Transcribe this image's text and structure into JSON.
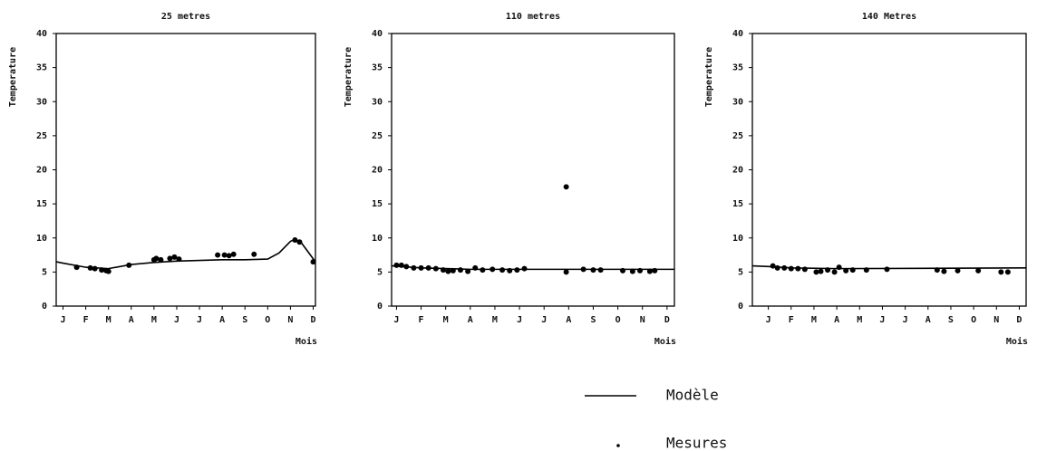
{
  "chart_data": [
    {
      "type": "line-scatter",
      "title": "25 metres",
      "y_label": "Temperature",
      "x_label": "Mois",
      "xlim": [
        -0.3,
        11.1
      ],
      "ylim": [
        0,
        40
      ],
      "yticks": [
        0,
        5,
        10,
        15,
        20,
        25,
        30,
        35,
        40
      ],
      "xticks": [
        {
          "value": 0,
          "label": "J"
        },
        {
          "value": 1,
          "label": "F"
        },
        {
          "value": 2,
          "label": "M"
        },
        {
          "value": 3,
          "label": "A"
        },
        {
          "value": 4,
          "label": "M"
        },
        {
          "value": 5,
          "label": "J"
        },
        {
          "value": 6,
          "label": "J"
        },
        {
          "value": 7,
          "label": "A"
        },
        {
          "value": 8,
          "label": "S"
        },
        {
          "value": 9,
          "label": "O"
        },
        {
          "value": 10,
          "label": "N"
        },
        {
          "value": 11,
          "label": "D"
        }
      ],
      "series": [
        {
          "name": "Modèle",
          "kind": "line",
          "color": "#000000",
          "x": [
            -0.3,
            0,
            1,
            2,
            3,
            4,
            5,
            6,
            7,
            8,
            9,
            9.5,
            10,
            10.2,
            10.5,
            11.1
          ],
          "values": [
            6.5,
            6.3,
            5.7,
            5.5,
            6.1,
            6.4,
            6.6,
            6.7,
            6.8,
            6.8,
            6.9,
            7.8,
            9.5,
            9.8,
            9.2,
            6.5
          ]
        },
        {
          "name": "Mesures",
          "kind": "scatter",
          "color": "#000000",
          "x": [
            0.6,
            1.2,
            1.4,
            1.7,
            1.9,
            2.0,
            2.9,
            4.0,
            4.1,
            4.3,
            4.7,
            4.9,
            5.1,
            6.8,
            7.1,
            7.3,
            7.5,
            8.4,
            10.2,
            10.4,
            11.0
          ],
          "values": [
            5.7,
            5.6,
            5.5,
            5.3,
            5.2,
            5.1,
            6.0,
            6.8,
            7.0,
            6.8,
            7.0,
            7.2,
            6.9,
            7.5,
            7.5,
            7.4,
            7.6,
            7.6,
            9.7,
            9.4,
            6.5
          ]
        }
      ]
    },
    {
      "type": "line-scatter",
      "title": "110 metres",
      "y_label": "Temperature",
      "x_label": "Mois",
      "xlim": [
        -0.2,
        11.3
      ],
      "ylim": [
        0,
        40
      ],
      "yticks": [
        0,
        5,
        10,
        15,
        20,
        25,
        30,
        35,
        40
      ],
      "xticks": [
        {
          "value": 0,
          "label": "J"
        },
        {
          "value": 1,
          "label": "F"
        },
        {
          "value": 2,
          "label": "M"
        },
        {
          "value": 3,
          "label": "A"
        },
        {
          "value": 4,
          "label": "M"
        },
        {
          "value": 5,
          "label": "J"
        },
        {
          "value": 6,
          "label": "J"
        },
        {
          "value": 7,
          "label": "A"
        },
        {
          "value": 8,
          "label": "S"
        },
        {
          "value": 9,
          "label": "O"
        },
        {
          "value": 10,
          "label": "N"
        },
        {
          "value": 11,
          "label": "D"
        }
      ],
      "series": [
        {
          "kind": "line",
          "color": "#000000",
          "x": [
            -0.2,
            1,
            3,
            11.3
          ],
          "values": [
            5.9,
            5.6,
            5.4,
            5.4
          ]
        },
        {
          "kind": "scatter",
          "color": "#000000",
          "x": [
            0,
            0.2,
            0.4,
            0.7,
            1,
            1.3,
            1.6,
            1.9,
            2.1,
            2.3,
            2.6,
            2.9,
            3.2,
            3.5,
            3.9,
            4.3,
            4.6,
            4.9,
            5.2,
            6.9,
            6.9,
            7.6,
            8,
            8.3,
            9.2,
            9.6,
            9.9,
            10.3,
            10.5
          ],
          "values": [
            6.0,
            6.0,
            5.8,
            5.6,
            5.6,
            5.6,
            5.5,
            5.3,
            5.1,
            5.2,
            5.3,
            5.1,
            5.6,
            5.3,
            5.4,
            5.3,
            5.2,
            5.3,
            5.5,
            17.5,
            5.0,
            5.4,
            5.3,
            5.3,
            5.2,
            5.1,
            5.2,
            5.1,
            5.2
          ]
        }
      ]
    },
    {
      "type": "line-scatter",
      "title": "140 Metres",
      "y_label": "Temperature",
      "x_label": "Mois",
      "xlim": [
        -0.7,
        11.3
      ],
      "ylim": [
        0,
        40
      ],
      "yticks": [
        0,
        5,
        10,
        15,
        20,
        25,
        30,
        35,
        40
      ],
      "xticks": [
        {
          "value": 0,
          "label": "J"
        },
        {
          "value": 1,
          "label": "F"
        },
        {
          "value": 2,
          "label": "M"
        },
        {
          "value": 3,
          "label": "A"
        },
        {
          "value": 4,
          "label": "M"
        },
        {
          "value": 5,
          "label": "J"
        },
        {
          "value": 6,
          "label": "J"
        },
        {
          "value": 7,
          "label": "A"
        },
        {
          "value": 8,
          "label": "S"
        },
        {
          "value": 9,
          "label": "O"
        },
        {
          "value": 10,
          "label": "N"
        },
        {
          "value": 11,
          "label": "D"
        }
      ],
      "series": [
        {
          "kind": "line",
          "color": "#000000",
          "x": [
            -0.7,
            0,
            1,
            3,
            11.3
          ],
          "values": [
            5.9,
            5.8,
            5.6,
            5.5,
            5.6
          ]
        },
        {
          "kind": "scatter",
          "color": "#000000",
          "x": [
            0.2,
            0.4,
            0.7,
            1,
            1.3,
            1.6,
            2.1,
            2.3,
            2.6,
            2.9,
            3.1,
            3.4,
            3.7,
            4.3,
            5.2,
            7.4,
            7.7,
            8.3,
            9.2,
            10.2,
            10.5
          ],
          "values": [
            5.9,
            5.6,
            5.6,
            5.5,
            5.5,
            5.4,
            5.0,
            5.1,
            5.3,
            5.0,
            5.7,
            5.2,
            5.3,
            5.3,
            5.4,
            5.3,
            5.1,
            5.2,
            5.2,
            5.0,
            5.0
          ]
        }
      ]
    }
  ]
}
